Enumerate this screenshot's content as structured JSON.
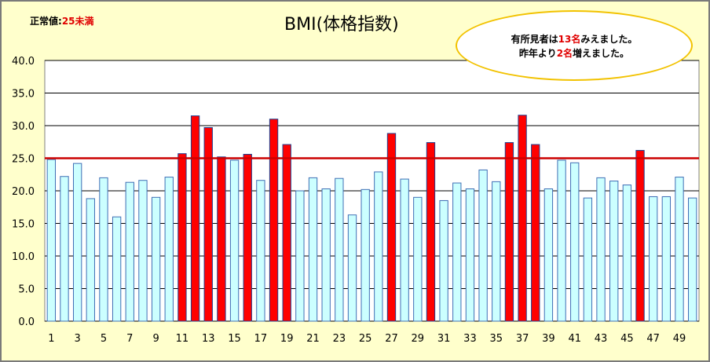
{
  "normal_note": {
    "label": "正常値:",
    "value": "25未満"
  },
  "callout": {
    "line1_pre": "有所見者は",
    "line1_hl": "13名",
    "line1_post": "みえました。",
    "line2_pre": "昨年より",
    "line2_hl": "2名",
    "line2_post": "増えました。"
  },
  "colors": {
    "normal_fill": "#ccffff",
    "normal_stroke": "#3f6fb5",
    "high_fill": "#ff0000",
    "high_stroke": "#1f3f8f",
    "threshold_line": "#cc0000",
    "plot_bg": "#ffffff",
    "frame_bg": "#ffffcc"
  },
  "chart_data": {
    "type": "bar",
    "title": "BMI(体格指数)",
    "xlabel": "",
    "ylabel": "",
    "ylim": [
      0,
      40
    ],
    "yticks": [
      "0.0",
      "5.0",
      "10.0",
      "15.0",
      "20.0",
      "25.0",
      "30.0",
      "35.0",
      "40.0"
    ],
    "xtick_labels": [
      "1",
      "3",
      "5",
      "7",
      "9",
      "11",
      "13",
      "15",
      "17",
      "19",
      "21",
      "23",
      "25",
      "27",
      "29",
      "31",
      "33",
      "35",
      "37",
      "39",
      "41",
      "43",
      "45",
      "47",
      "49"
    ],
    "categories": [
      1,
      2,
      3,
      4,
      5,
      6,
      7,
      8,
      9,
      10,
      11,
      12,
      13,
      14,
      15,
      16,
      17,
      18,
      19,
      20,
      21,
      22,
      23,
      24,
      25,
      26,
      27,
      28,
      29,
      30,
      31,
      32,
      33,
      34,
      35,
      36,
      37,
      38,
      39,
      40,
      41,
      42,
      43,
      44,
      45,
      46,
      47,
      48,
      49,
      50
    ],
    "values": [
      24.8,
      22.2,
      24.2,
      18.8,
      22.0,
      16.0,
      21.3,
      21.6,
      19.0,
      22.1,
      25.7,
      31.5,
      29.7,
      25.2,
      24.7,
      25.6,
      21.6,
      31.0,
      27.1,
      20.0,
      22.0,
      20.3,
      21.9,
      16.3,
      20.2,
      22.9,
      28.8,
      21.8,
      19.0,
      27.4,
      18.5,
      21.2,
      20.3,
      23.2,
      21.4,
      27.4,
      31.6,
      27.1,
      20.3,
      24.7,
      24.3,
      18.9,
      22.0,
      21.5,
      20.9,
      26.2,
      19.1,
      19.1,
      22.1,
      18.9
    ],
    "threshold": 25,
    "grid": true,
    "legend": "none"
  }
}
